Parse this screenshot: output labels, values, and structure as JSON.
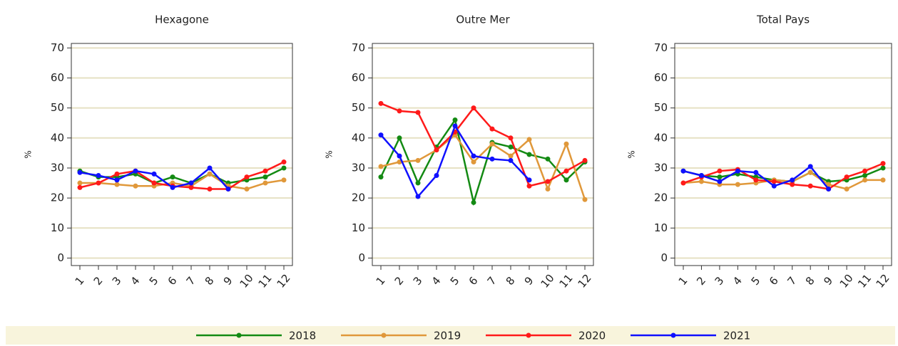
{
  "chart_data": [
    {
      "type": "line",
      "title": "Hexagone",
      "ylabel": "%",
      "categories": [
        "1",
        "2",
        "3",
        "4",
        "5",
        "6",
        "7",
        "8",
        "9",
        "10",
        "11",
        "12"
      ],
      "ylim": [
        -2.5,
        71.5
      ],
      "yticks": [
        0,
        10,
        20,
        30,
        40,
        50,
        60,
        70
      ],
      "grid": true,
      "series": [
        {
          "name": "2018",
          "color": "#138a13",
          "values": [
            29,
            27,
            27,
            28,
            25,
            27,
            25,
            28,
            25,
            26,
            27,
            30
          ]
        },
        {
          "name": "2019",
          "color": "#e0983a",
          "values": [
            25,
            25,
            24.5,
            24,
            24,
            25,
            24,
            28,
            24,
            23,
            25,
            26
          ]
        },
        {
          "name": "2020",
          "color": "#ff1a1a",
          "values": [
            23.5,
            25,
            28,
            29,
            25,
            24,
            23.5,
            23,
            23,
            27,
            29,
            32
          ]
        },
        {
          "name": "2021",
          "color": "#1010ff",
          "values": [
            28.5,
            27.5,
            26,
            29,
            28,
            23.5,
            25,
            30,
            23,
            null,
            null,
            null
          ]
        }
      ]
    },
    {
      "type": "line",
      "title": "Outre Mer",
      "ylabel": "%",
      "categories": [
        "1",
        "2",
        "3",
        "4",
        "5",
        "6",
        "7",
        "8",
        "9",
        "10",
        "11",
        "12"
      ],
      "ylim": [
        -2.5,
        71.5
      ],
      "yticks": [
        0,
        10,
        20,
        30,
        40,
        50,
        60,
        70
      ],
      "grid": true,
      "series": [
        {
          "color": "#138a13",
          "values": [
            27,
            40,
            25,
            37,
            46,
            18.5,
            38.5,
            37,
            34.5,
            33,
            26,
            32
          ]
        },
        {
          "color": "#e0983a",
          "values": [
            30.5,
            32,
            32.5,
            36,
            41,
            32,
            38,
            34,
            39.5,
            23,
            38,
            19.5
          ]
        },
        {
          "color": "#ff1a1a",
          "values": [
            51.5,
            49,
            48.5,
            36,
            42,
            50,
            43,
            40,
            24,
            25.5,
            29,
            32.5
          ]
        },
        {
          "color": "#1010ff",
          "values": [
            41,
            34,
            20.5,
            27.5,
            44,
            34,
            33,
            32.5,
            26,
            null,
            null,
            null
          ]
        }
      ]
    },
    {
      "type": "line",
      "title": "Total Pays",
      "ylabel": "%",
      "categories": [
        "1",
        "2",
        "3",
        "4",
        "5",
        "6",
        "7",
        "8",
        "9",
        "10",
        "11",
        "12"
      ],
      "ylim": [
        -2.5,
        71.5
      ],
      "yticks": [
        0,
        10,
        20,
        30,
        40,
        50,
        60,
        70
      ],
      "grid": true,
      "series": [
        {
          "color": "#138a13",
          "values": [
            29,
            27.5,
            27,
            28,
            27,
            26,
            25.5,
            28.5,
            25.5,
            26,
            27.5,
            30
          ]
        },
        {
          "color": "#e0983a",
          "values": [
            25,
            25.5,
            24.5,
            24.5,
            25,
            26,
            25.5,
            28.5,
            24.5,
            23,
            26,
            26
          ]
        },
        {
          "color": "#ff1a1a",
          "values": [
            25,
            27,
            29,
            29.5,
            26,
            25.5,
            24.5,
            24,
            23,
            27,
            29,
            31.5
          ]
        },
        {
          "color": "#1010ff",
          "values": [
            29,
            27.5,
            25.5,
            29,
            28.5,
            24,
            26,
            30.5,
            23,
            null,
            null,
            null
          ]
        }
      ]
    }
  ]
}
